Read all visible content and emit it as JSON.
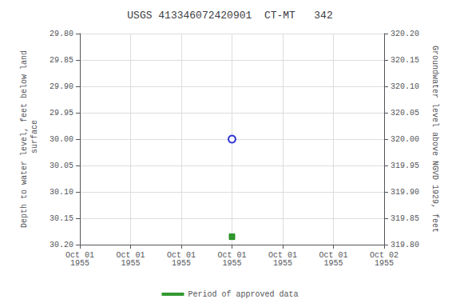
{
  "chart_data": {
    "type": "scatter",
    "title": "USGS 413346072420901  CT-MT   342",
    "y_label": "Depth to water level, feet below land\n surface",
    "y2_label": "Groundwater level above NGVD 1929, feet",
    "categories": [
      "Oct 01\n1955",
      "Oct 01\n1955",
      "Oct 01\n1955",
      "Oct 01\n1955",
      "Oct 01\n1955",
      "Oct 01\n1955",
      "Oct 02\n1955"
    ],
    "ylim": [
      30.2,
      29.8
    ],
    "yticks": [
      {
        "value": 29.8,
        "label": "29.80"
      },
      29.85,
      {
        "value": 29.9,
        "label": "29.90"
      },
      29.95,
      {
        "value": 30.0,
        "label": "30.00"
      },
      30.05,
      {
        "value": 30.1,
        "label": "30.10"
      },
      30.15,
      {
        "value": 30.2,
        "label": "30.20"
      }
    ],
    "y2lim": [
      319.8,
      320.2
    ],
    "y2ticks": [
      {
        "value": 320.2,
        "label": "320.20"
      },
      320.15,
      {
        "value": 320.1,
        "label": "320.10"
      },
      320.05,
      {
        "value": 320.0,
        "label": "320.00"
      },
      319.95,
      {
        "value": 319.9,
        "label": "319.90"
      },
      319.85,
      {
        "value": 319.8,
        "label": "319.80"
      }
    ],
    "grid": true,
    "legend": "bottom",
    "series": [
      {
        "color": "#0000cc",
        "marker": "open_circle",
        "values": [
          null,
          null,
          null,
          30.0,
          null,
          null,
          null
        ]
      },
      {
        "name": "Period of approved data",
        "color": "#008000",
        "marker": "square",
        "values": [
          null,
          null,
          null,
          30.185,
          null,
          null,
          null
        ]
      }
    ]
  }
}
